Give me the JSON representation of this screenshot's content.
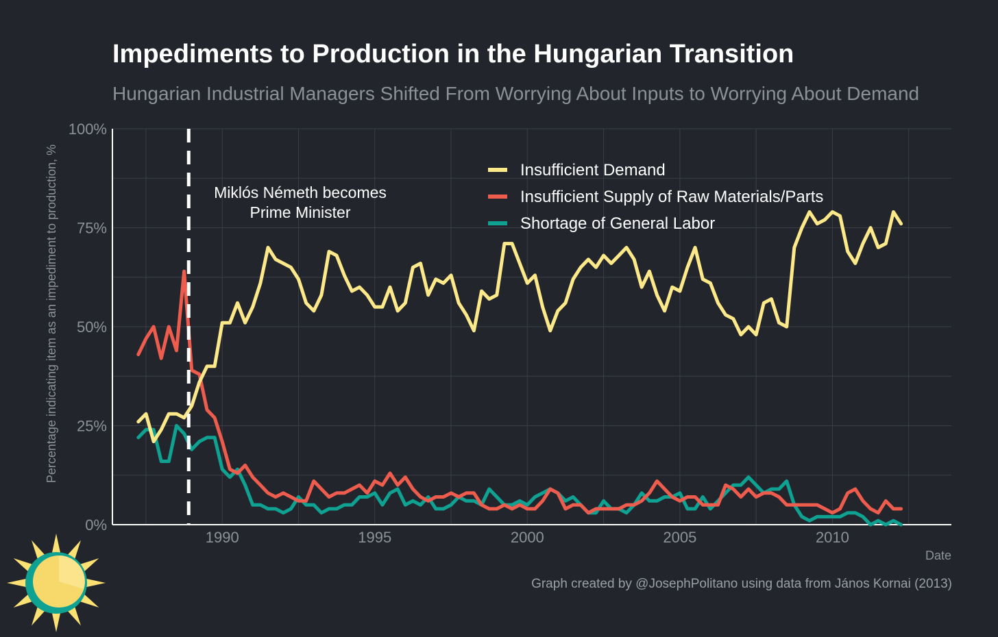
{
  "header": {
    "title": "Impediments to Production in the Hungarian Transition",
    "subtitle": "Hungarian Industrial Managers Shifted From Worrying About Inputs to Worrying About Demand"
  },
  "footer": {
    "credit": "Graph created by @JosephPolitano using data from János Kornai (2013)"
  },
  "logo": {
    "icon": "sun-logo-icon"
  },
  "colors": {
    "background": "#22262c",
    "demand": "#fde98a",
    "supply": "#ee5c4e",
    "labor": "#0fa292",
    "grid": "#3a3e46",
    "axis": "#ffffff"
  },
  "chart_data": {
    "type": "line",
    "title": "Impediments to Production in the Hungarian Transition",
    "subtitle": "Hungarian Industrial Managers Shifted From Worrying About Inputs to Worrying About Demand",
    "xlabel": "Date",
    "ylabel": "Percentage indicating item as an impediment to production, %",
    "xlim": [
      1986.4,
      2013.9
    ],
    "ylim": [
      0,
      100
    ],
    "x_ticks": [
      1990,
      1995,
      2000,
      2005,
      2010
    ],
    "x_tick_labels": [
      "1990",
      "1995",
      "2000",
      "2005",
      "2010"
    ],
    "y_ticks": [
      0,
      25,
      50,
      75,
      100
    ],
    "y_tick_labels": [
      "0%",
      "25%",
      "50%",
      "75%",
      "100%"
    ],
    "grid": true,
    "legend": "top-center",
    "annotation": {
      "x": 1988.9,
      "style": "vertical dashed line",
      "lines": [
        "Miklós Németh becomes",
        "Prime Minister"
      ]
    },
    "series": [
      {
        "name": "Insufficient Demand",
        "color": "#fde98a",
        "x": [
          1987.25,
          1987.5,
          1987.75,
          1988.0,
          1988.25,
          1988.5,
          1988.75,
          1989.0,
          1989.25,
          1989.5,
          1989.75,
          1990.0,
          1990.25,
          1990.5,
          1990.75,
          1991.0,
          1991.25,
          1991.5,
          1991.75,
          1992.0,
          1992.25,
          1992.5,
          1992.75,
          1993.0,
          1993.25,
          1993.5,
          1993.75,
          1994.0,
          1994.25,
          1994.5,
          1994.75,
          1995.0,
          1995.25,
          1995.5,
          1995.75,
          1996.0,
          1996.25,
          1996.5,
          1996.75,
          1997.0,
          1997.25,
          1997.5,
          1997.75,
          1998.0,
          1998.25,
          1998.5,
          1998.75,
          1999.0,
          1999.25,
          1999.5,
          1999.75,
          2000.0,
          2000.25,
          2000.5,
          2000.75,
          2001.0,
          2001.25,
          2001.5,
          2001.75,
          2002.0,
          2002.25,
          2002.5,
          2002.75,
          2003.0,
          2003.25,
          2003.5,
          2003.75,
          2004.0,
          2004.25,
          2004.5,
          2004.75,
          2005.0,
          2005.25,
          2005.5,
          2005.75,
          2006.0,
          2006.25,
          2006.5,
          2006.75,
          2007.0,
          2007.25,
          2007.5,
          2007.75,
          2008.0,
          2008.25,
          2008.5,
          2008.75,
          2009.0,
          2009.25,
          2009.5,
          2009.75,
          2010.0,
          2010.25,
          2010.5,
          2010.75,
          2011.0,
          2011.25,
          2011.5,
          2011.75,
          2012.0,
          2012.25
        ],
        "values": [
          26,
          28,
          21,
          24,
          28,
          28,
          27,
          30,
          36,
          40,
          40,
          51,
          51,
          56,
          51,
          55,
          61,
          70,
          67,
          66,
          65,
          62,
          56,
          54,
          58,
          69,
          68,
          63,
          59,
          60,
          58,
          55,
          55,
          60,
          54,
          56,
          65,
          66,
          58,
          62,
          61,
          63,
          56,
          53,
          49,
          59,
          57,
          58,
          71,
          71,
          66,
          61,
          63,
          55,
          49,
          54,
          56,
          62,
          65,
          67,
          65,
          68,
          66,
          68,
          70,
          67,
          60,
          64,
          58,
          54,
          60,
          59,
          65,
          70,
          62,
          61,
          56,
          53,
          52,
          48,
          50,
          48,
          56,
          57,
          51,
          50,
          70,
          75,
          79,
          76,
          77,
          79,
          78,
          69,
          66,
          71,
          75,
          70,
          71,
          79,
          76
        ]
      },
      {
        "name": "Insufficient Supply of Raw Materials/Parts",
        "color": "#ee5c4e",
        "x": [
          1987.25,
          1987.5,
          1987.75,
          1988.0,
          1988.25,
          1988.5,
          1988.75,
          1989.0,
          1989.25,
          1989.5,
          1989.75,
          1990.0,
          1990.25,
          1990.5,
          1990.75,
          1991.0,
          1991.25,
          1991.5,
          1991.75,
          1992.0,
          1992.25,
          1992.5,
          1992.75,
          1993.0,
          1993.25,
          1993.5,
          1993.75,
          1994.0,
          1994.25,
          1994.5,
          1994.75,
          1995.0,
          1995.25,
          1995.5,
          1995.75,
          1996.0,
          1996.25,
          1996.5,
          1996.75,
          1997.0,
          1997.25,
          1997.5,
          1997.75,
          1998.0,
          1998.25,
          1998.5,
          1998.75,
          1999.0,
          1999.25,
          1999.5,
          1999.75,
          2000.0,
          2000.25,
          2000.5,
          2000.75,
          2001.0,
          2001.25,
          2001.5,
          2001.75,
          2002.0,
          2002.25,
          2002.5,
          2002.75,
          2003.0,
          2003.25,
          2003.5,
          2003.75,
          2004.0,
          2004.25,
          2004.5,
          2004.75,
          2005.0,
          2005.25,
          2005.5,
          2005.75,
          2006.0,
          2006.25,
          2006.5,
          2006.75,
          2007.0,
          2007.25,
          2007.5,
          2007.75,
          2008.0,
          2008.25,
          2008.5,
          2008.75,
          2009.0,
          2009.25,
          2009.5,
          2009.75,
          2010.0,
          2010.25,
          2010.5,
          2010.75,
          2011.0,
          2011.25,
          2011.5,
          2011.75,
          2012.0,
          2012.25
        ],
        "values": [
          43,
          47,
          50,
          42,
          50,
          44,
          64,
          39,
          38,
          29,
          27,
          21,
          14,
          13,
          15,
          12,
          10,
          8,
          7,
          8,
          7,
          6,
          6,
          11,
          9,
          7,
          8,
          8,
          9,
          10,
          8,
          11,
          10,
          13,
          10,
          12,
          9,
          7,
          6,
          7,
          7,
          8,
          7,
          8,
          8,
          5,
          4,
          4,
          5,
          4,
          5,
          4,
          4,
          6,
          9,
          8,
          4,
          5,
          5,
          3,
          4,
          4,
          4,
          4,
          5,
          5,
          6,
          8,
          11,
          9,
          7,
          6,
          7,
          7,
          5,
          5,
          5,
          10,
          9,
          7,
          9,
          7,
          8,
          8,
          7,
          5,
          5,
          5,
          5,
          5,
          4,
          3,
          4,
          8,
          9,
          6,
          4,
          3,
          6,
          4,
          4
        ]
      },
      {
        "name": "Shortage of General Labor",
        "color": "#0fa292",
        "x": [
          1987.25,
          1987.5,
          1987.75,
          1988.0,
          1988.25,
          1988.5,
          1988.75,
          1989.0,
          1989.25,
          1989.5,
          1989.75,
          1990.0,
          1990.25,
          1990.5,
          1990.75,
          1991.0,
          1991.25,
          1991.5,
          1991.75,
          1992.0,
          1992.25,
          1992.5,
          1992.75,
          1993.0,
          1993.25,
          1993.5,
          1993.75,
          1994.0,
          1994.25,
          1994.5,
          1994.75,
          1995.0,
          1995.25,
          1995.5,
          1995.75,
          1996.0,
          1996.25,
          1996.5,
          1996.75,
          1997.0,
          1997.25,
          1997.5,
          1997.75,
          1998.0,
          1998.25,
          1998.5,
          1998.75,
          1999.0,
          1999.25,
          1999.5,
          1999.75,
          2000.0,
          2000.25,
          2000.5,
          2000.75,
          2001.0,
          2001.25,
          2001.5,
          2001.75,
          2002.0,
          2002.25,
          2002.5,
          2002.75,
          2003.0,
          2003.25,
          2003.5,
          2003.75,
          2004.0,
          2004.25,
          2004.5,
          2004.75,
          2005.0,
          2005.25,
          2005.5,
          2005.75,
          2006.0,
          2006.25,
          2006.5,
          2006.75,
          2007.0,
          2007.25,
          2007.5,
          2007.75,
          2008.0,
          2008.25,
          2008.5,
          2008.75,
          2009.0,
          2009.25,
          2009.5,
          2009.75,
          2010.0,
          2010.25,
          2010.5,
          2010.75,
          2011.0,
          2011.25,
          2011.5,
          2011.75,
          2012.0,
          2012.25
        ],
        "values": [
          22,
          24,
          24,
          16,
          16,
          25,
          23,
          19,
          21,
          22,
          22,
          14,
          12,
          14,
          10,
          5,
          5,
          4,
          4,
          3,
          4,
          7,
          5,
          5,
          3,
          4,
          4,
          5,
          5,
          7,
          7,
          8,
          5,
          8,
          9,
          5,
          6,
          5,
          7,
          4,
          4,
          5,
          7,
          6,
          6,
          5,
          9,
          7,
          5,
          5,
          6,
          5,
          7,
          8,
          9,
          8,
          6,
          7,
          5,
          3,
          3,
          6,
          4,
          4,
          3,
          5,
          8,
          6,
          6,
          7,
          7,
          8,
          4,
          4,
          7,
          4,
          6,
          8,
          10,
          10,
          12,
          10,
          8,
          9,
          9,
          11,
          5,
          2,
          1,
          2,
          2,
          2,
          2,
          3,
          3,
          2,
          0,
          1,
          0,
          1,
          0
        ]
      }
    ]
  }
}
